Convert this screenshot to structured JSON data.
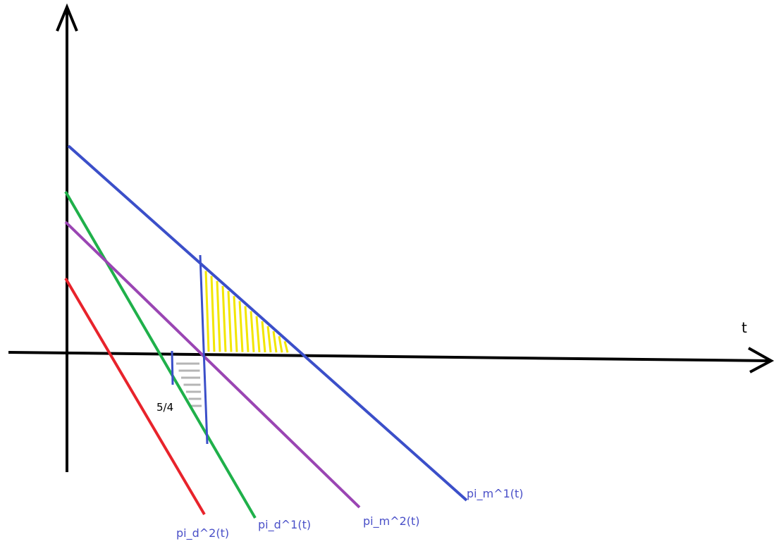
{
  "diagram": {
    "axis_label_t": "t",
    "marker_label": "5/4",
    "lines": [
      {
        "id": "pi_m1",
        "label": "pi_m^1(t)",
        "color": "#3b4fc9"
      },
      {
        "id": "pi_d1",
        "label": "pi_d^1(t)",
        "color": "#1fb04a"
      },
      {
        "id": "pi_m2",
        "label": "pi_m^2(t)",
        "color": "#9a45b3"
      },
      {
        "id": "pi_d2",
        "label": "pi_d^2(t)",
        "color": "#e8232b"
      }
    ],
    "colors": {
      "axis": "#000000",
      "label_text": "#4a50c8",
      "yellow_hatch": "#f2e600",
      "gray_hatch": "#b5b5b5",
      "vertical_markers": "#3b4fc9"
    }
  }
}
